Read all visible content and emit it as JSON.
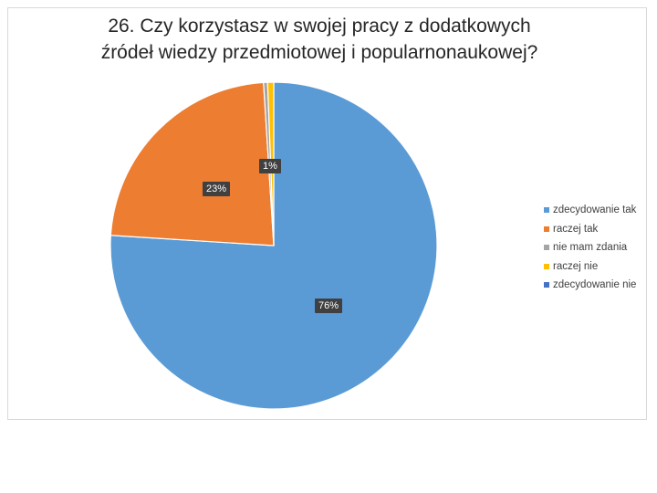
{
  "chart_data": {
    "type": "pie",
    "title_lines": [
      "26. Czy korzystasz w swojej pracy z dodatkowych",
      "źródeł wiedzy przedmiotowej i popularnonaukowej?"
    ],
    "categories": [
      "zdecydowanie tak",
      "raczej tak",
      "nie mam zdania",
      "raczej nie",
      "zdecydowanie nie"
    ],
    "values": [
      76,
      23,
      0.4,
      0.6,
      0
    ],
    "colors": [
      "#5b9bd5",
      "#ed7d31",
      "#a5a5a5",
      "#ffc000",
      "#4472c4"
    ],
    "data_labels": [
      "76%",
      "23%",
      "",
      "1%",
      ""
    ],
    "legend_position": "right"
  }
}
